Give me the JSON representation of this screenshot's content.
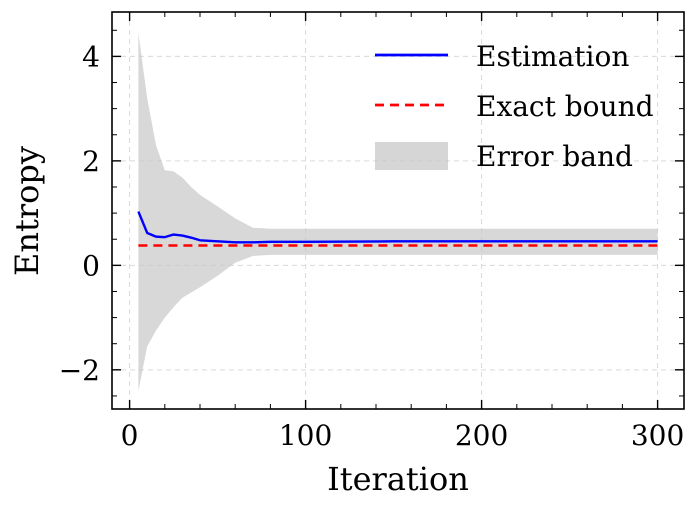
{
  "chart_data": {
    "type": "line",
    "title": "",
    "xlabel": "Iteration",
    "ylabel": "Entropy",
    "xlim": [
      -10,
      315
    ],
    "ylim": [
      -2.75,
      4.85
    ],
    "grid": true,
    "legend_position": "top-right",
    "x_ticks": [
      0,
      100,
      200,
      300
    ],
    "x_tick_labels": [
      "0",
      "100",
      "200",
      "300"
    ],
    "y_ticks": [
      -2,
      0,
      2,
      4
    ],
    "y_tick_labels": [
      "−2",
      "0",
      "2",
      "4"
    ],
    "series": [
      {
        "name": "Estimation",
        "kind": "line",
        "color": "#0000ff",
        "style": "solid",
        "x": [
          5,
          10,
          15,
          20,
          25,
          30,
          35,
          40,
          50,
          60,
          70,
          80,
          100,
          150,
          200,
          250,
          300
        ],
        "y": [
          1.03,
          0.62,
          0.55,
          0.54,
          0.59,
          0.57,
          0.53,
          0.48,
          0.46,
          0.44,
          0.44,
          0.45,
          0.45,
          0.46,
          0.46,
          0.46,
          0.46
        ]
      },
      {
        "name": "Exact bound",
        "kind": "line",
        "color": "#ff0000",
        "style": "dashed",
        "x": [
          5,
          300
        ],
        "y": [
          0.38,
          0.38
        ]
      },
      {
        "name": "Error band",
        "kind": "band",
        "color": "#c8c8c8",
        "x": [
          5,
          10,
          15,
          20,
          25,
          30,
          35,
          40,
          50,
          60,
          70,
          80,
          100,
          150,
          200,
          250,
          300
        ],
        "upper": [
          4.45,
          3.2,
          2.3,
          1.82,
          1.8,
          1.68,
          1.5,
          1.35,
          1.13,
          0.9,
          0.72,
          0.7,
          0.7,
          0.7,
          0.7,
          0.7,
          0.7
        ],
        "lower": [
          -2.4,
          -1.55,
          -1.25,
          -1.0,
          -0.8,
          -0.62,
          -0.52,
          -0.42,
          -0.2,
          0.05,
          0.18,
          0.2,
          0.2,
          0.2,
          0.2,
          0.2,
          0.2
        ]
      }
    ]
  }
}
